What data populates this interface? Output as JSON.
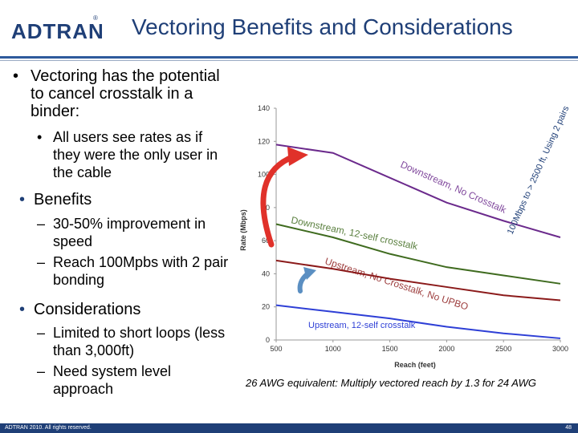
{
  "header": {
    "logo": "ADTRAN",
    "logo_mark": "®",
    "title": "Vectoring Benefits and Considerations"
  },
  "content": {
    "bullet1": "Vectoring has the potential to cancel crosstalk in a binder:",
    "bullet1_sub": "All users see rates as if they were the only user in the cable",
    "bullet2": "Benefits",
    "bullet2_subs": [
      "30-50% improvement in speed",
      "Reach 100Mpbs with 2 pair bonding"
    ],
    "bullet3": "Considerations",
    "bullet3_subs": [
      "Limited to short loops (less than 3,000ft)",
      "Need system level approach"
    ]
  },
  "caption": "26 AWG equivalent:  Multiply vectored reach by 1.3 for 24 AWG",
  "footer": {
    "copyright": "ADTRAN 2010. All rights reserved.",
    "page": "48"
  },
  "chart_data": {
    "type": "line",
    "title": "",
    "xlabel": "Reach (feet)",
    "ylabel": "Rate (Mbps)",
    "xlim": [
      500,
      3000
    ],
    "ylim": [
      0,
      140
    ],
    "xticks": [
      "500",
      "1000",
      "1500",
      "2000",
      "2500",
      "3000"
    ],
    "yticks": [
      "0",
      "20",
      "40",
      "60",
      "80",
      "100",
      "120",
      "140"
    ],
    "series": [
      {
        "name": "Downstream, No Crosstalk",
        "color": "#6b2a8c",
        "x": [
          500,
          1000,
          1500,
          2000,
          2500,
          3000
        ],
        "y": [
          118,
          113,
          98,
          83,
          72,
          62
        ]
      },
      {
        "name": "Downstream, 12-self crosstalk",
        "color": "#3f6b1f",
        "x": [
          500,
          1000,
          1500,
          2000,
          2500,
          3000
        ],
        "y": [
          70,
          62,
          52,
          44,
          39,
          34
        ]
      },
      {
        "name": "Upstream, No Crosstalk, No UPBO",
        "color": "#8b1a1a",
        "x": [
          500,
          1000,
          1500,
          2000,
          2500,
          3000
        ],
        "y": [
          48,
          43,
          37,
          32,
          27,
          24
        ]
      },
      {
        "name": "Upstream, 12-self crosstalk",
        "color": "#2e3fd6",
        "x": [
          500,
          1000,
          1500,
          2000,
          2500,
          3000
        ],
        "y": [
          21,
          17,
          13,
          8,
          4,
          1
        ]
      }
    ],
    "annotations": {
      "series_labels": [
        "Downstream, No Crosstalk",
        "Downstream, 12-self crosstalk",
        "Upstream, No Crosstalk, No UPBO",
        "Upstream, 12-self crosstalk"
      ],
      "callout": "100Mbps to > 2500 ft, Using 2 pairs"
    }
  }
}
